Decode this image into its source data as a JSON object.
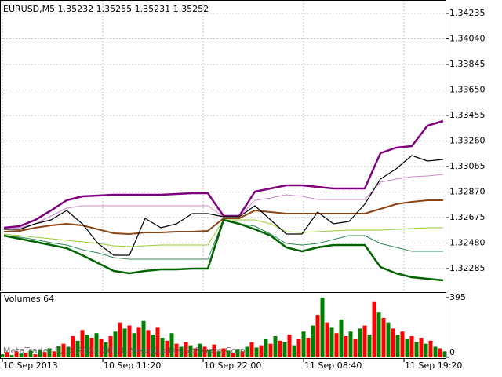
{
  "chart_data": [
    {
      "type": "line",
      "title": "EURUSD,M5  1.35232 1.35255 1.35231 1.35252",
      "x": [
        5,
        25,
        45,
        65,
        85,
        105,
        125,
        145,
        165,
        185,
        205,
        225,
        245,
        265,
        285,
        305,
        325,
        345,
        365,
        385,
        405,
        425,
        445,
        465,
        485,
        505,
        525,
        545,
        565
      ],
      "xlim": [
        0,
        568
      ],
      "xticks": [
        {
          "value": 3,
          "label": "10 Sep 2013"
        },
        {
          "value": 131,
          "label": "10 Sep 11:20"
        },
        {
          "value": 259,
          "label": "10 Sep 22:00"
        },
        {
          "value": 387,
          "label": "11 Sep 08:40"
        },
        {
          "value": 515,
          "label": "11 Sep 19:20"
        }
      ],
      "ylim": [
        1.32117,
        1.34337
      ],
      "yticks": [
        1.32285,
        {
          "value": 1.3248,
          "label": "1.32480"
        },
        1.32675,
        {
          "value": 1.3287,
          "label": "1.32870"
        },
        1.33065,
        {
          "value": 1.3326,
          "label": "1.33260"
        },
        1.33455,
        {
          "value": 1.3365,
          "label": "1.33650"
        },
        1.33845,
        {
          "value": 1.3404,
          "label": "1.34040"
        },
        1.34235
      ],
      "grid": true,
      "series": [
        {
          "color": "#800080",
          "width": 2.5,
          "values": [
            1.32597,
            1.32609,
            1.32657,
            1.32729,
            1.32807,
            1.32837,
            1.32843,
            1.32849,
            1.32849,
            1.32849,
            1.32849,
            1.32855,
            1.32861,
            1.32861,
            1.32687,
            1.32687,
            1.32873,
            1.32897,
            1.32921,
            1.32921,
            1.32909,
            1.32897,
            1.32897,
            1.32897,
            1.33167,
            1.33209,
            1.33221,
            1.33377,
            1.33413
          ]
        },
        {
          "color": "#cc88cc",
          "width": 1,
          "values": [
            1.32585,
            1.32597,
            1.32627,
            1.32687,
            1.32747,
            1.32765,
            1.32765,
            1.32765,
            1.32765,
            1.32765,
            1.32765,
            1.32765,
            1.32765,
            1.32765,
            1.32681,
            1.32681,
            1.32807,
            1.32825,
            1.32849,
            1.32837,
            1.32813,
            1.32813,
            1.32813,
            1.32813,
            1.32945,
            1.32969,
            1.32987,
            1.32993,
            1.33005
          ]
        },
        {
          "color": "#8b4513",
          "width": 2,
          "values": [
            1.32567,
            1.32573,
            1.32597,
            1.32615,
            1.32627,
            1.32615,
            1.32585,
            1.32555,
            1.32549,
            1.32561,
            1.32561,
            1.32567,
            1.32567,
            1.32573,
            1.32669,
            1.32669,
            1.32729,
            1.32717,
            1.32705,
            1.32705,
            1.32705,
            1.32705,
            1.32705,
            1.32705,
            1.32741,
            1.32777,
            1.32795,
            1.32807,
            1.32807
          ]
        },
        {
          "color": "#9acd32",
          "width": 1,
          "values": [
            1.32549,
            1.32537,
            1.32525,
            1.32513,
            1.32501,
            1.32489,
            1.32477,
            1.32459,
            1.32453,
            1.32459,
            1.32465,
            1.32465,
            1.32465,
            1.32465,
            1.32657,
            1.32657,
            1.32657,
            1.32627,
            1.32567,
            1.32561,
            1.32567,
            1.32573,
            1.32579,
            1.32579,
            1.32579,
            1.32585,
            1.32591,
            1.32597,
            1.32597
          ]
        },
        {
          "color": "#2e8b57",
          "width": 1,
          "values": [
            1.32537,
            1.32525,
            1.32507,
            1.32483,
            1.32465,
            1.32429,
            1.32405,
            1.32369,
            1.32357,
            1.32357,
            1.32357,
            1.32357,
            1.32357,
            1.32357,
            1.32657,
            1.32627,
            1.32609,
            1.32549,
            1.32477,
            1.32465,
            1.32477,
            1.32507,
            1.32537,
            1.32537,
            1.32477,
            1.32447,
            1.32417,
            1.32417,
            1.32417
          ]
        },
        {
          "color": "#006400",
          "width": 2.5,
          "values": [
            1.32537,
            1.32513,
            1.32489,
            1.32465,
            1.32441,
            1.32387,
            1.32327,
            1.32267,
            1.32249,
            1.32267,
            1.32279,
            1.32279,
            1.32285,
            1.32285,
            1.32657,
            1.32627,
            1.32585,
            1.32537,
            1.32447,
            1.32417,
            1.32447,
            1.32465,
            1.32465,
            1.32465,
            1.32297,
            1.32249,
            1.32219,
            1.32207,
            1.32195
          ]
        },
        {
          "color": "#000000",
          "width": 1.2,
          "values": [
            1.32585,
            1.32585,
            1.32627,
            1.32657,
            1.32729,
            1.32627,
            1.32477,
            1.32387,
            1.32387,
            1.32669,
            1.32597,
            1.32627,
            1.32705,
            1.32705,
            1.32681,
            1.32681,
            1.32765,
            1.32657,
            1.32549,
            1.32549,
            1.32717,
            1.32627,
            1.32645,
            1.32777,
            1.32969,
            1.33047,
            1.33149,
            1.33107,
            1.33119
          ]
        }
      ]
    },
    {
      "type": "bar",
      "title": "Volumes 64",
      "x": [
        3,
        9,
        15,
        21,
        27,
        33,
        39,
        45,
        51,
        57,
        63,
        69,
        75,
        81,
        87,
        93,
        99,
        105,
        111,
        117,
        123,
        129,
        135,
        141,
        147,
        153,
        159,
        165,
        171,
        177,
        183,
        189,
        195,
        201,
        207,
        213,
        219,
        225,
        231,
        237,
        243,
        249,
        255,
        261,
        267,
        273,
        279,
        285,
        291,
        297,
        303,
        309,
        315,
        321,
        327,
        333,
        339,
        345,
        351,
        357,
        363,
        369,
        375,
        381,
        387,
        393,
        399,
        405,
        411,
        417,
        423,
        429,
        435,
        441,
        447,
        453,
        459,
        465,
        471,
        477,
        483,
        489,
        495,
        501,
        507,
        513,
        519,
        525,
        531,
        537,
        543,
        549,
        555,
        561,
        567
      ],
      "values": [
        20,
        35,
        15,
        40,
        25,
        30,
        45,
        20,
        50,
        35,
        60,
        40,
        75,
        90,
        70,
        140,
        110,
        180,
        150,
        130,
        160,
        120,
        100,
        140,
        170,
        230,
        190,
        210,
        160,
        200,
        240,
        180,
        150,
        200,
        130,
        110,
        160,
        90,
        70,
        100,
        80,
        60,
        90,
        70,
        50,
        85,
        40,
        60,
        45,
        30,
        55,
        40,
        70,
        100,
        65,
        80,
        120,
        90,
        140,
        110,
        100,
        150,
        80,
        120,
        170,
        130,
        210,
        280,
        395,
        230,
        200,
        160,
        250,
        140,
        170,
        120,
        190,
        210,
        150,
        370,
        300,
        260,
        230,
        190,
        150,
        170,
        120,
        140,
        100,
        130,
        90,
        110,
        70,
        60,
        40
      ],
      "xlim": [
        0,
        568
      ],
      "ylim": [
        0,
        431
      ],
      "yticks": [
        0,
        395
      ],
      "colors": [
        "#008000",
        "#ff0000"
      ]
    }
  ],
  "watermark": "MetaTrader 5, © 2001-2013, MetaQuotes Software Corp."
}
